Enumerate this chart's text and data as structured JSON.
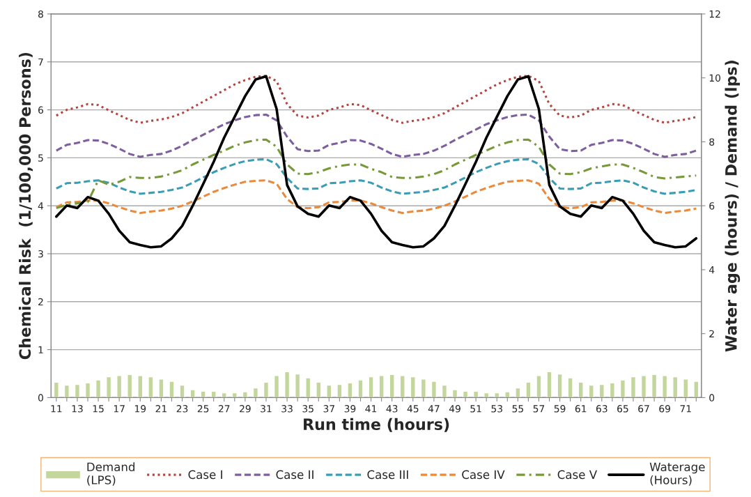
{
  "chart_data": {
    "type": "line",
    "xlabel": "Run time (hours)",
    "ylabel": "Chemical Risk  (1/100,000 Persons)",
    "y2label": "Water age (hours) / Demand (lps)",
    "categories": [
      "11",
      null,
      "13",
      null,
      "15",
      null,
      "17",
      null,
      "19",
      null,
      "21",
      null,
      "23",
      null,
      "25",
      null,
      "27",
      null,
      "29",
      null,
      "31",
      null,
      "33",
      null,
      "35",
      null,
      "37",
      null,
      "39",
      null,
      "41",
      null,
      "43",
      null,
      "45",
      null,
      "47",
      null,
      "49",
      null,
      "51",
      null,
      "53",
      null,
      "55",
      null,
      "57",
      null,
      "59",
      null,
      "61",
      null,
      "63",
      null,
      "65",
      null,
      "67",
      null,
      "69",
      null,
      "71",
      null
    ],
    "ylim": [
      0,
      8
    ],
    "yticks": [
      0,
      1,
      2,
      3,
      4,
      5,
      6,
      7,
      8
    ],
    "y2lim": [
      0,
      12
    ],
    "y2ticks": [
      0,
      2,
      4,
      6,
      8,
      10,
      12
    ],
    "grid": "y",
    "legend": "bottom",
    "series": [
      {
        "name": "Demand\n(LPS)",
        "type": "bar",
        "axis": "y2",
        "color": "#c3d69b",
        "values": [
          0.48,
          0.39,
          0.41,
          0.46,
          0.55,
          0.65,
          0.69,
          0.72,
          0.69,
          0.65,
          0.58,
          0.51,
          0.39,
          0.25,
          0.2,
          0.2,
          0.15,
          0.15,
          0.18,
          0.3,
          0.48,
          0.69,
          0.81,
          0.74,
          0.62,
          0.48,
          0.39,
          0.41,
          0.46,
          0.55,
          0.65,
          0.69,
          0.72,
          0.69,
          0.65,
          0.58,
          0.51,
          0.39,
          0.25,
          0.2,
          0.2,
          0.15,
          0.15,
          0.18,
          0.3,
          0.48,
          0.69,
          0.81,
          0.74,
          0.62,
          0.48,
          0.39,
          0.41,
          0.46,
          0.55,
          0.65,
          0.69,
          0.72,
          0.69,
          0.65,
          0.58,
          0.51
        ]
      },
      {
        "name": "Case I",
        "line_style": "dotted",
        "color": "#b5443f",
        "values": [
          5.88,
          6.0,
          6.05,
          6.12,
          6.1,
          5.99,
          5.89,
          5.79,
          5.73,
          5.77,
          5.8,
          5.85,
          5.93,
          6.05,
          6.17,
          6.29,
          6.41,
          6.53,
          6.62,
          6.69,
          6.71,
          6.6,
          6.12,
          5.88,
          5.84,
          5.88,
          6.0,
          6.05,
          6.12,
          6.1,
          5.99,
          5.89,
          5.79,
          5.73,
          5.77,
          5.8,
          5.85,
          5.93,
          6.05,
          6.17,
          6.29,
          6.41,
          6.53,
          6.62,
          6.69,
          6.71,
          6.6,
          6.12,
          5.88,
          5.84,
          5.88,
          6.0,
          6.05,
          6.12,
          6.1,
          5.99,
          5.89,
          5.79,
          5.73,
          5.77,
          5.8,
          5.85
        ]
      },
      {
        "name": "Case II",
        "line_style": "dashed",
        "color": "#7d5fa0",
        "values": [
          5.15,
          5.27,
          5.31,
          5.37,
          5.36,
          5.29,
          5.19,
          5.08,
          5.02,
          5.06,
          5.08,
          5.15,
          5.25,
          5.37,
          5.48,
          5.59,
          5.7,
          5.78,
          5.85,
          5.89,
          5.9,
          5.78,
          5.44,
          5.18,
          5.14,
          5.15,
          5.27,
          5.31,
          5.37,
          5.36,
          5.29,
          5.19,
          5.08,
          5.02,
          5.06,
          5.08,
          5.15,
          5.25,
          5.37,
          5.48,
          5.59,
          5.7,
          5.78,
          5.85,
          5.89,
          5.9,
          5.78,
          5.44,
          5.18,
          5.14,
          5.15,
          5.27,
          5.31,
          5.37,
          5.36,
          5.29,
          5.19,
          5.08,
          5.02,
          5.06,
          5.08,
          5.15
        ]
      },
      {
        "name": "Case III",
        "line_style": "dashed",
        "color": "#3b9db5",
        "values": [
          4.36,
          4.47,
          4.48,
          4.51,
          4.53,
          4.48,
          4.38,
          4.3,
          4.25,
          4.27,
          4.29,
          4.33,
          4.38,
          4.48,
          4.59,
          4.7,
          4.79,
          4.87,
          4.93,
          4.96,
          4.97,
          4.87,
          4.58,
          4.36,
          4.35,
          4.36,
          4.47,
          4.48,
          4.51,
          4.53,
          4.48,
          4.38,
          4.3,
          4.25,
          4.27,
          4.29,
          4.33,
          4.38,
          4.48,
          4.59,
          4.7,
          4.79,
          4.87,
          4.93,
          4.96,
          4.97,
          4.87,
          4.58,
          4.36,
          4.35,
          4.36,
          4.47,
          4.48,
          4.51,
          4.53,
          4.48,
          4.38,
          4.3,
          4.25,
          4.27,
          4.29,
          4.33
        ]
      },
      {
        "name": "Case IV",
        "line_style": "dashed",
        "color": "#e98a3c",
        "values": [
          3.97,
          4.07,
          4.08,
          4.11,
          4.11,
          4.05,
          3.97,
          3.9,
          3.85,
          3.88,
          3.9,
          3.94,
          4.0,
          4.09,
          4.19,
          4.29,
          4.37,
          4.44,
          4.5,
          4.52,
          4.53,
          4.46,
          4.14,
          3.97,
          3.95,
          3.97,
          4.07,
          4.08,
          4.11,
          4.11,
          4.05,
          3.97,
          3.9,
          3.85,
          3.88,
          3.9,
          3.94,
          4.0,
          4.09,
          4.19,
          4.29,
          4.37,
          4.44,
          4.5,
          4.52,
          4.53,
          4.46,
          4.14,
          3.97,
          3.95,
          3.97,
          4.07,
          4.08,
          4.11,
          4.11,
          4.05,
          3.97,
          3.9,
          3.85,
          3.88,
          3.9,
          3.94
        ]
      },
      {
        "name": "Case V",
        "line_style": "dashdot",
        "color": "#77993a",
        "values": [
          3.95,
          4.02,
          4.05,
          4.08,
          4.53,
          4.44,
          4.5,
          4.6,
          4.58,
          4.58,
          4.61,
          4.67,
          4.74,
          4.86,
          4.96,
          5.06,
          5.15,
          5.25,
          5.32,
          5.37,
          5.38,
          5.23,
          4.86,
          4.67,
          4.66,
          4.7,
          4.78,
          4.83,
          4.86,
          4.86,
          4.77,
          4.7,
          4.6,
          4.58,
          4.58,
          4.61,
          4.66,
          4.74,
          4.86,
          4.96,
          5.06,
          5.15,
          5.25,
          5.32,
          5.37,
          5.38,
          5.23,
          4.86,
          4.67,
          4.66,
          4.7,
          4.78,
          4.82,
          4.86,
          4.86,
          4.79,
          4.7,
          4.6,
          4.57,
          4.59,
          4.61,
          4.63
        ]
      },
      {
        "name": "Waterage\n(Hours)",
        "axis": "y2",
        "line_style": "solid",
        "color": "#000000",
        "values": [
          5.66,
          6.01,
          5.93,
          6.27,
          6.16,
          5.75,
          5.22,
          4.86,
          4.77,
          4.7,
          4.73,
          4.98,
          5.37,
          6.0,
          6.68,
          7.37,
          8.13,
          8.78,
          9.43,
          9.95,
          10.05,
          9.03,
          6.65,
          5.98,
          5.75,
          5.66,
          6.01,
          5.93,
          6.27,
          6.16,
          5.75,
          5.22,
          4.86,
          4.77,
          4.7,
          4.73,
          4.98,
          5.37,
          6.0,
          6.68,
          7.37,
          8.13,
          8.78,
          9.43,
          9.95,
          10.05,
          9.03,
          6.65,
          5.98,
          5.75,
          5.66,
          6.01,
          5.93,
          6.27,
          6.16,
          5.75,
          5.22,
          4.86,
          4.77,
          4.7,
          4.73,
          4.98
        ]
      }
    ]
  }
}
